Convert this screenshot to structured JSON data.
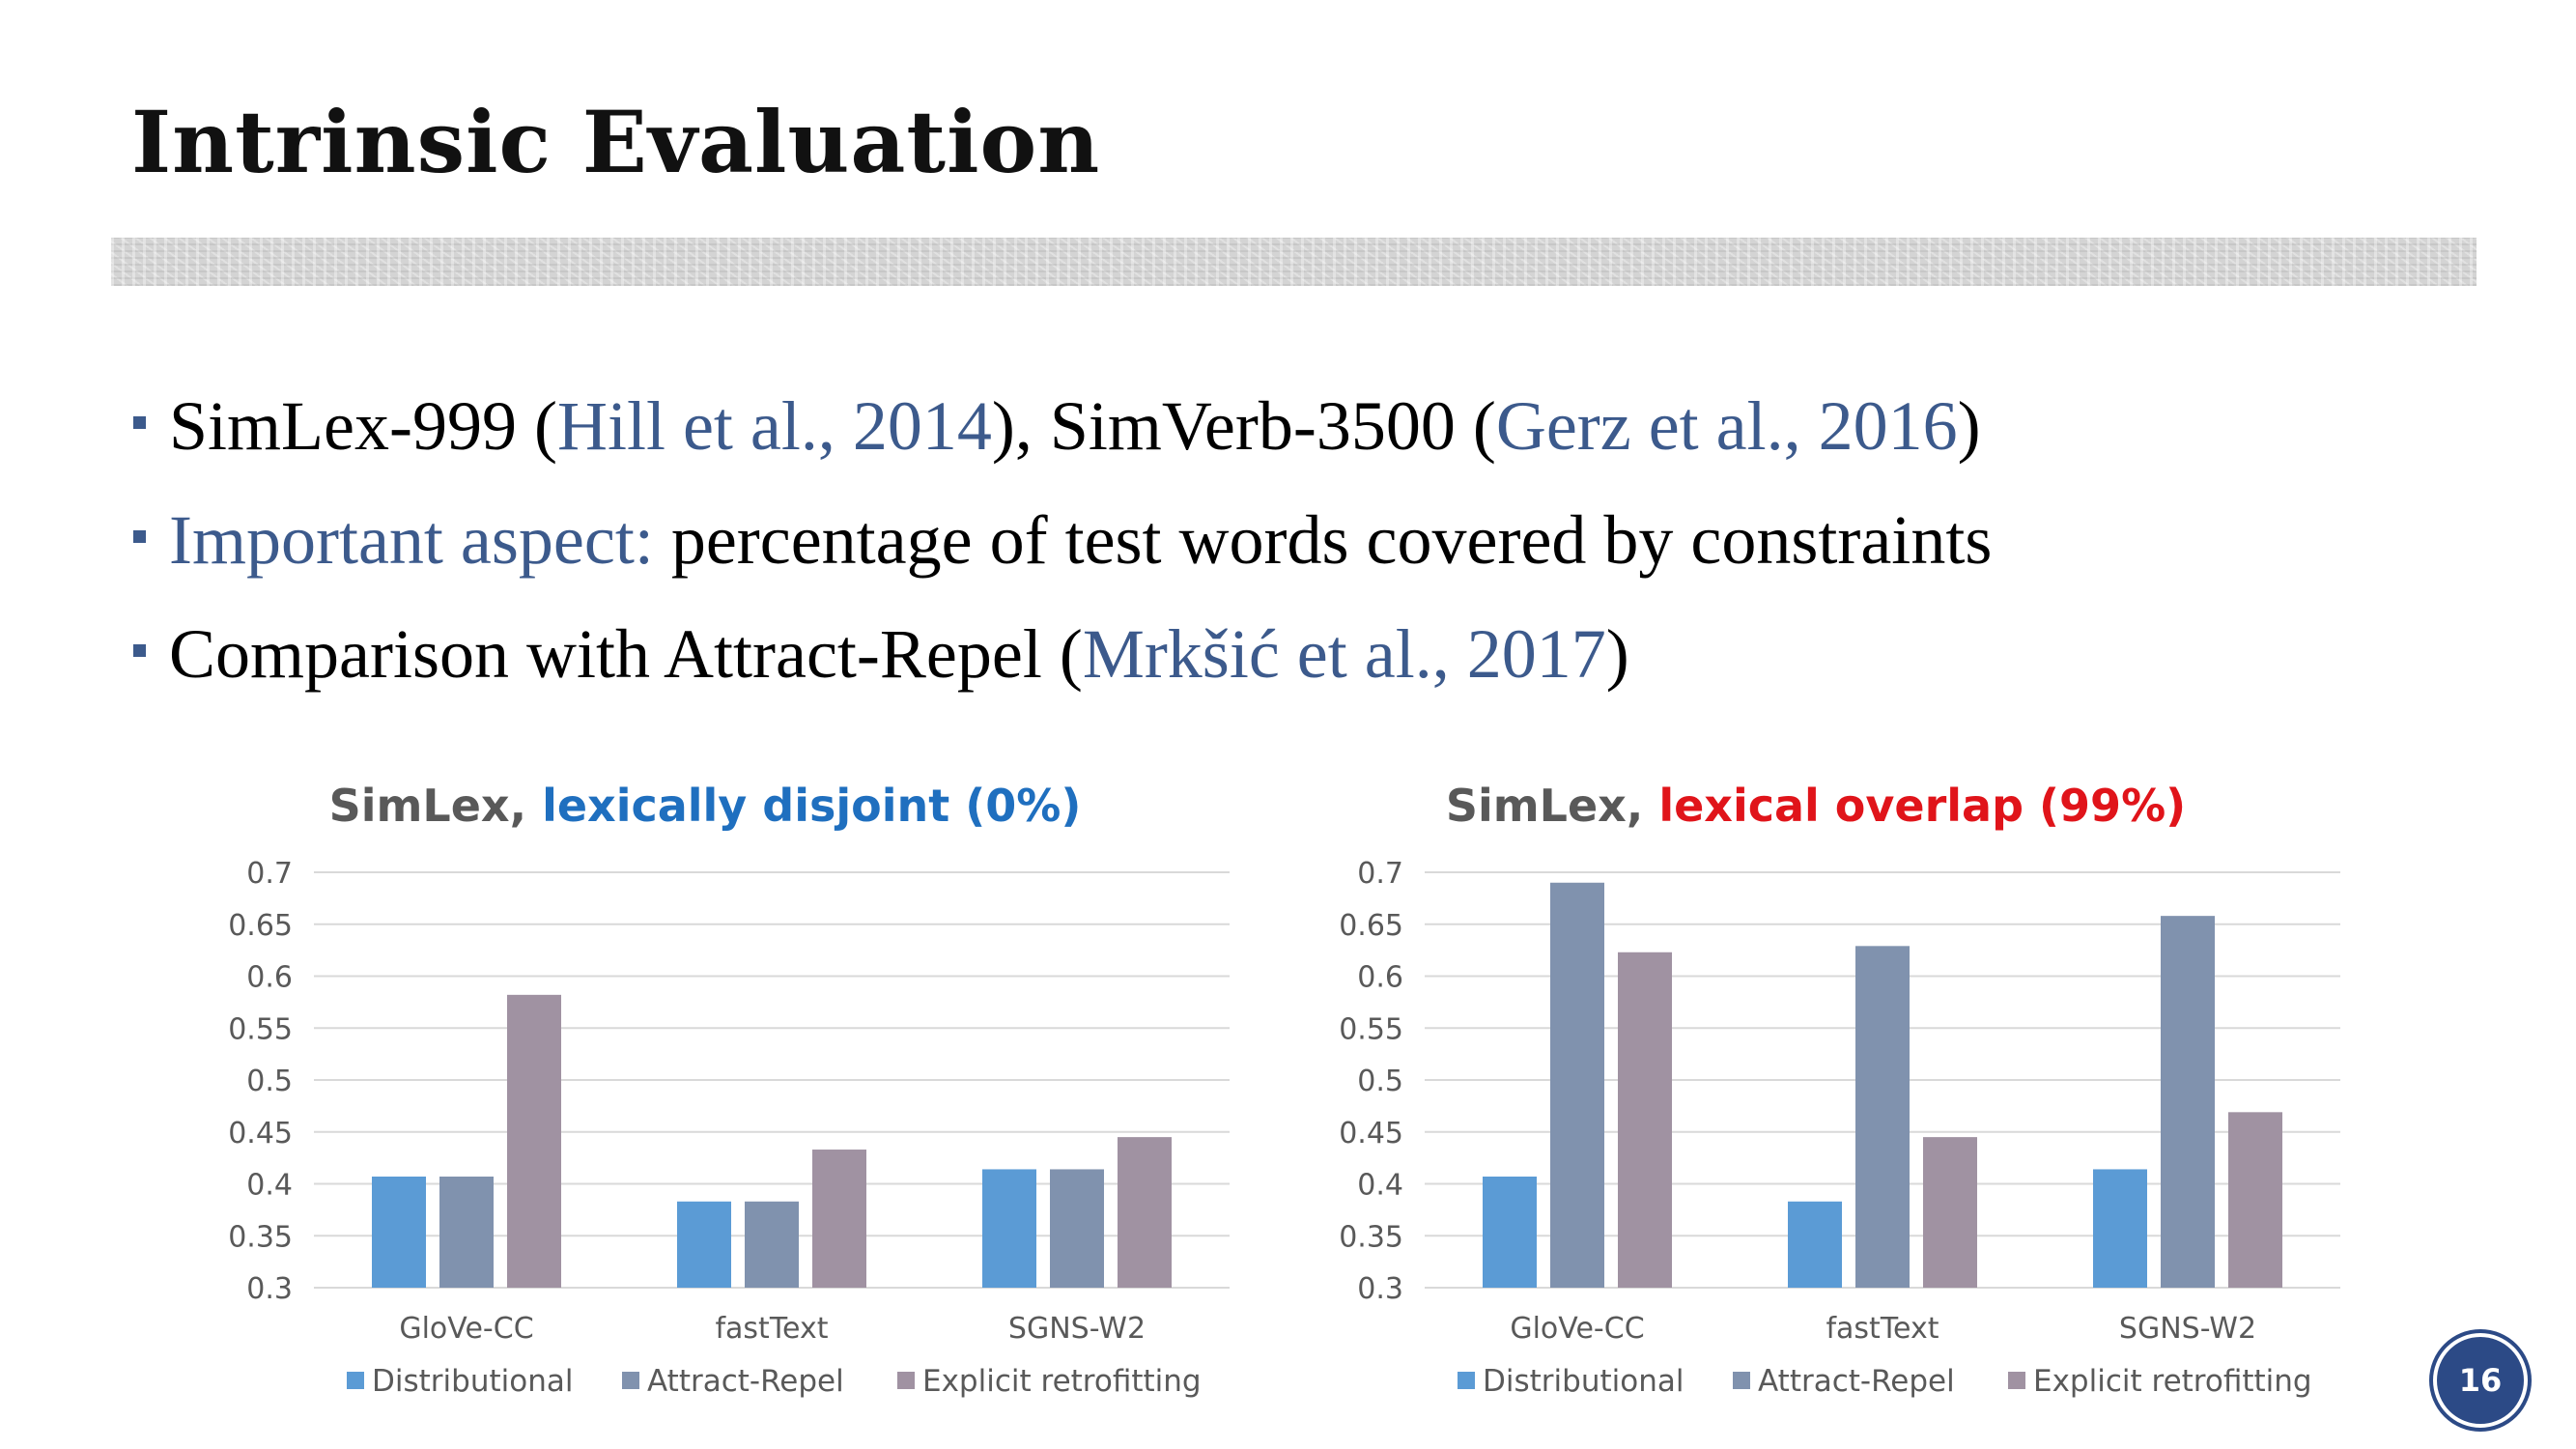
{
  "slide": {
    "title": "Intrinsic Evaluation",
    "page_number": "16"
  },
  "bullets": [
    {
      "parts": [
        {
          "text": "SimLex-999 (",
          "cite": false
        },
        {
          "text": "Hill et al., 2014",
          "cite": true
        },
        {
          "text": "), SimVerb-3500 (",
          "cite": false
        },
        {
          "text": "Gerz et al., 2016",
          "cite": true
        },
        {
          "text": ")",
          "cite": false
        }
      ]
    },
    {
      "parts": [
        {
          "text": "Important aspect:",
          "cite": true
        },
        {
          "text": " percentage of test words covered by constraints",
          "cite": false
        }
      ]
    },
    {
      "parts": [
        {
          "text": "Comparison with Attract-Repel (",
          "cite": false
        },
        {
          "text": "Mrkšić et al., 2017",
          "cite": true
        },
        {
          "text": ")",
          "cite": false
        }
      ]
    }
  ],
  "colors": {
    "citation": "#3c5a8c",
    "distributional": "#5b9bd5",
    "attract_repel": "#8092ae",
    "explicit_retrofitting": "#a092a2",
    "gridline": "#d9d9d9",
    "tick_text": "#595959",
    "title_prefix": "#595959",
    "left_title_highlight": "#1f6fbf",
    "right_title_highlight": "#e0141a"
  },
  "chart_data": [
    {
      "type": "bar",
      "title_prefix": "SimLex, ",
      "title_highlight": "lexically disjoint (0%)",
      "categories": [
        "GloVe-CC",
        "fastText",
        "SGNS-W2"
      ],
      "series": [
        {
          "name": "Distributional",
          "values": [
            0.407,
            0.383,
            0.414
          ]
        },
        {
          "name": "Attract-Repel",
          "values": [
            0.407,
            0.383,
            0.414
          ]
        },
        {
          "name": "Explicit retrofitting",
          "values": [
            0.582,
            0.433,
            0.445
          ]
        }
      ],
      "ylim": [
        0.3,
        0.7
      ],
      "yticks": [
        "0.7",
        "0.65",
        "0.6",
        "0.55",
        "0.5",
        "0.45",
        "0.4",
        "0.35",
        "0.3"
      ],
      "xlabel": "",
      "ylabel": "",
      "grid": true,
      "legend_position": "bottom"
    },
    {
      "type": "bar",
      "title_prefix": "SimLex, ",
      "title_highlight": "lexical overlap (99%)",
      "categories": [
        "GloVe-CC",
        "fastText",
        "SGNS-W2"
      ],
      "series": [
        {
          "name": "Distributional",
          "values": [
            0.407,
            0.383,
            0.414
          ]
        },
        {
          "name": "Attract-Repel",
          "values": [
            0.69,
            0.629,
            0.658
          ]
        },
        {
          "name": "Explicit retrofitting",
          "values": [
            0.623,
            0.445,
            0.469
          ]
        }
      ],
      "ylim": [
        0.3,
        0.7
      ],
      "yticks": [
        "0.7",
        "0.65",
        "0.6",
        "0.55",
        "0.5",
        "0.45",
        "0.4",
        "0.35",
        "0.3"
      ],
      "xlabel": "",
      "ylabel": "",
      "grid": true,
      "legend_position": "bottom"
    }
  ]
}
